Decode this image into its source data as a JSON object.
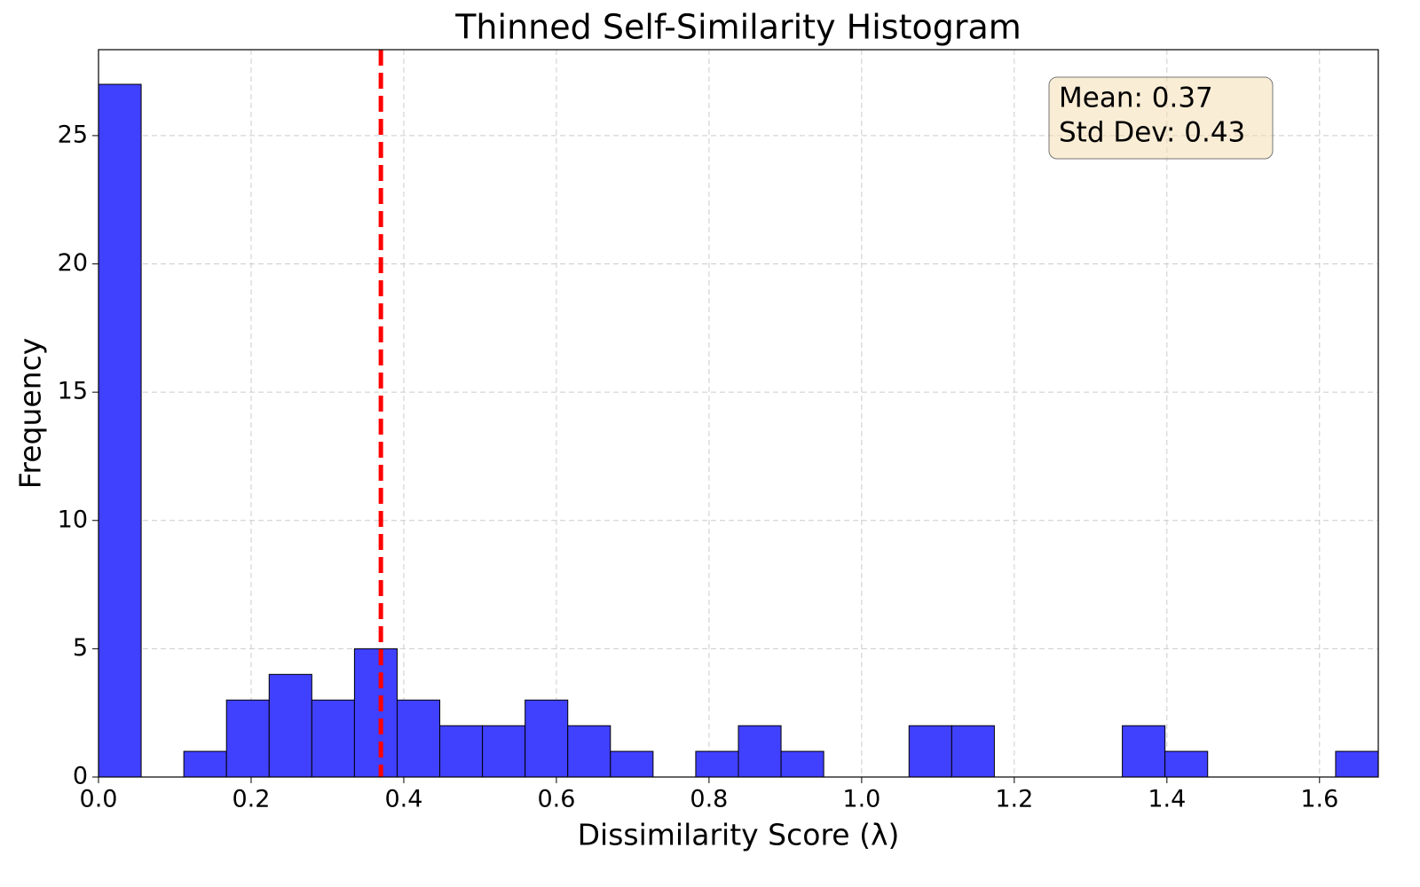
{
  "chart_data": {
    "type": "histogram",
    "title": "Thinned Self-Similarity Histogram",
    "xlabel": "Dissimilarity Score (λ)",
    "ylabel": "Frequency",
    "bins": [
      0,
      0.0559,
      0.1118,
      0.1677,
      0.2236,
      0.2795,
      0.3354,
      0.3913,
      0.4472,
      0.5031,
      0.559,
      0.6149,
      0.6708,
      0.7267,
      0.7826,
      0.8385,
      0.8944,
      0.9503,
      1.0062,
      1.0621,
      1.118,
      1.1739,
      1.2298,
      1.2857,
      1.3416,
      1.3975,
      1.4534,
      1.5093,
      1.5652,
      1.6211,
      1.677
    ],
    "values": [
      27,
      0,
      1,
      3,
      4,
      3,
      5,
      3,
      2,
      2,
      3,
      2,
      1,
      0,
      1,
      2,
      1,
      0,
      0,
      2,
      2,
      0,
      0,
      0,
      2,
      1,
      0,
      0,
      0,
      1
    ],
    "color": "#4040ff",
    "mean_line": {
      "value": 0.37,
      "color": "#ff0000"
    },
    "annotation": [
      "Mean: 0.37",
      "Std Dev: 0.43"
    ],
    "xlim": [
      0,
      1.677
    ],
    "ylim": [
      0,
      28.35
    ],
    "xticks": [
      {
        "value": 0,
        "label": "0.0"
      },
      0.2,
      0.4,
      0.6,
      0.8,
      {
        "value": 1,
        "label": "1.0"
      },
      1.2,
      1.4,
      1.6
    ],
    "yticks": [
      0,
      5,
      10,
      15,
      20,
      25
    ],
    "grid": true
  }
}
